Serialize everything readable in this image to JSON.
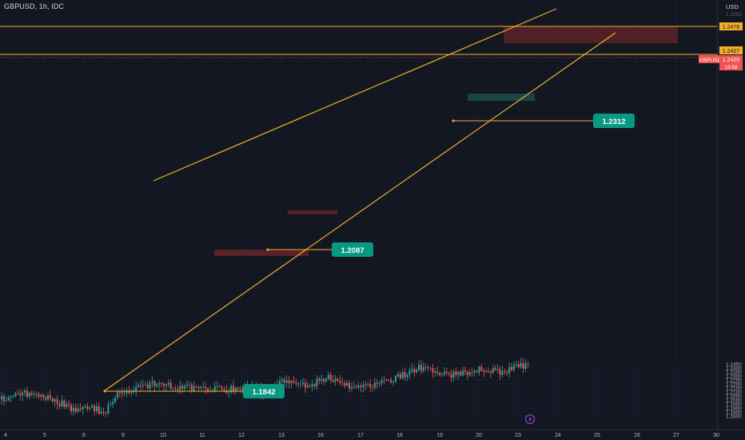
{
  "header": {
    "symbol_title": "GBPUSD, 1h, IDC",
    "currency": "USD"
  },
  "price_axis": {
    "top_faded_label": "1.2500",
    "ticks": [
      "1.2450",
      "1.2400",
      "1.2350",
      "1.2300",
      "1.2250",
      "1.2200",
      "1.2150",
      "1.2100",
      "1.2050",
      "1.2000",
      "1.1950",
      "1.1900",
      "1.1850",
      "1.1800"
    ],
    "tags": [
      {
        "name": "resistance-price-tag",
        "text": "1.2478",
        "bg": "#f0b028",
        "fg": "#131722"
      },
      {
        "name": "level-price-tag",
        "text": "1.2427",
        "bg": "#f0b028",
        "fg": "#131722"
      },
      {
        "name": "symbol-price-tag",
        "text": "GBPUSD",
        "bg": "#f05350",
        "fg": "#ffffff"
      },
      {
        "name": "last-price-tag",
        "text": "1.2420",
        "bg": "#f05350",
        "fg": "#ffffff"
      },
      {
        "name": "countdown-tag",
        "text": "13:58",
        "bg": "#f05350",
        "fg": "#ffffff"
      }
    ]
  },
  "time_axis": {
    "ticks": [
      "4",
      "5",
      "6",
      "9",
      "10",
      "11",
      "12",
      "13",
      "16",
      "17",
      "18",
      "19",
      "20",
      "23",
      "24",
      "25",
      "26",
      "27",
      "30"
    ]
  },
  "annotations": [
    {
      "name": "low-label",
      "text": "1.1842"
    },
    {
      "name": "support-label",
      "text": "1.2087"
    },
    {
      "name": "pullback-label",
      "text": "1.2312"
    }
  ],
  "colors": {
    "background": "#131722",
    "up_candle": "#26a69a",
    "down_candle": "#ef5350",
    "drawing_line": "#f0b028",
    "label_bg": "#089981",
    "supply_zone": "#5c2228",
    "demand_zone": "#1b4a47"
  },
  "icons": {
    "lightning": "lightning-icon"
  },
  "chart_data": {
    "type": "candlestick",
    "title": "GBPUSD, 1h, IDC",
    "ylim": [
      1.178,
      1.251
    ],
    "x_ticks": [
      "4",
      "5",
      "6",
      "9",
      "10",
      "11",
      "12",
      "13",
      "16",
      "17",
      "18",
      "19",
      "20",
      "23",
      "24",
      "25",
      "26",
      "27",
      "30"
    ],
    "anchors": [
      {
        "time": "4",
        "price": 1.2
      },
      {
        "time": "4 (mid)",
        "price": 1.209
      },
      {
        "time": "5",
        "price": 1.205
      },
      {
        "time": "5 (late)",
        "price": 1.189
      },
      {
        "time": "6",
        "price": 1.193
      },
      {
        "time": "6 (low)",
        "price": 1.1842
      },
      {
        "time": "9",
        "price": 1.205
      },
      {
        "time": "9 (late)",
        "price": 1.216
      },
      {
        "time": "10",
        "price": 1.22
      },
      {
        "time": "11",
        "price": 1.215
      },
      {
        "time": "12",
        "price": 1.213
      },
      {
        "time": "12 (late)",
        "price": 1.217
      },
      {
        "time": "13",
        "price": 1.2087
      },
      {
        "time": "13 (late)",
        "price": 1.224
      },
      {
        "time": "16",
        "price": 1.218
      },
      {
        "time": "16 (high)",
        "price": 1.228
      },
      {
        "time": "17",
        "price": 1.219
      },
      {
        "time": "17 (low)",
        "price": 1.2165
      },
      {
        "time": "18",
        "price": 1.228
      },
      {
        "time": "18 (high)",
        "price": 1.243
      },
      {
        "time": "19",
        "price": 1.233
      },
      {
        "time": "19 (low)",
        "price": 1.2312
      },
      {
        "time": "20",
        "price": 1.239
      },
      {
        "time": "20 (late)",
        "price": 1.235
      },
      {
        "time": "23",
        "price": 1.243
      },
      {
        "time": "23 (last)",
        "price": 1.242
      }
    ],
    "levels": [
      1.2478,
      1.2427
    ],
    "zones": [
      {
        "type": "supply",
        "from_price": 1.2452,
        "to_price": 1.2478
      },
      {
        "type": "demand",
        "from_price": 1.2345,
        "to_price": 1.2355
      },
      {
        "type": "supply",
        "from_price": 1.2147,
        "to_price": 1.2153
      },
      {
        "type": "supply",
        "from_price": 1.208,
        "to_price": 1.2087
      }
    ]
  }
}
